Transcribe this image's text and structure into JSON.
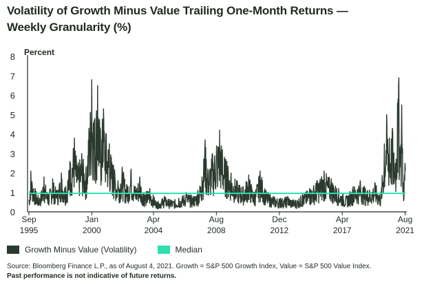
{
  "title_line1": "Volatility of Growth Minus Value Trailing One-Month Returns —",
  "title_line2": "Weekly Granularity (%)",
  "source": "Source: Bloomberg Finance L.P., as of August 4, 2021. Growth = S&P 500 Growth Index, Value = S&P 500 Value Index.",
  "disclaimer": "Past performance is not indicative of future returns.",
  "colors": {
    "series": "#2b3a2e",
    "median": "#2de0b0",
    "text": "#1f2a1f",
    "axis": "#1f2a1f"
  },
  "chart_data": {
    "type": "line",
    "title": "Volatility of Growth Minus Value Trailing One-Month Returns — Weekly Granularity (%)",
    "ylabel": "Percent",
    "ylim": [
      0,
      8
    ],
    "yticks": [
      0,
      1,
      2,
      3,
      4,
      5,
      6,
      7,
      8
    ],
    "xlim": [
      1995.67,
      2021.6
    ],
    "xticks": [
      {
        "x": 1995.67,
        "line1": "Sep",
        "line2": "1995"
      },
      {
        "x": 2000.0,
        "line1": "Jan",
        "line2": "2000"
      },
      {
        "x": 2004.25,
        "line1": "Apr",
        "line2": "2004"
      },
      {
        "x": 2008.58,
        "line1": "Aug",
        "line2": "2008"
      },
      {
        "x": 2012.92,
        "line1": "Dec",
        "line2": "2012"
      },
      {
        "x": 2017.25,
        "line1": "Apr",
        "line2": "2017"
      },
      {
        "x": 2021.58,
        "line1": "Aug",
        "line2": "2021"
      }
    ],
    "legend": [
      "Growth Minus Value (Volatility)",
      "Median"
    ],
    "legend_position": "bottom-left",
    "grid": false,
    "median": 0.95,
    "series": [
      {
        "name": "Growth Minus Value (Volatility)",
        "anchors": [
          [
            1995.67,
            0.6
          ],
          [
            1995.8,
            2.1
          ],
          [
            1996.1,
            1.2
          ],
          [
            1996.4,
            0.7
          ],
          [
            1996.7,
            1.8
          ],
          [
            1997.0,
            0.9
          ],
          [
            1997.3,
            1.7
          ],
          [
            1997.6,
            1.1
          ],
          [
            1997.9,
            2.0
          ],
          [
            1998.2,
            1.3
          ],
          [
            1998.5,
            2.6
          ],
          [
            1998.8,
            3.8
          ],
          [
            1999.0,
            2.4
          ],
          [
            1999.3,
            3.0
          ],
          [
            1999.6,
            2.3
          ],
          [
            1999.8,
            4.3
          ],
          [
            2000.0,
            6.8
          ],
          [
            2000.2,
            4.8
          ],
          [
            2000.4,
            6.5
          ],
          [
            2000.6,
            4.2
          ],
          [
            2000.8,
            5.3
          ],
          [
            2001.0,
            4.0
          ],
          [
            2001.2,
            3.5
          ],
          [
            2001.5,
            2.4
          ],
          [
            2001.8,
            1.6
          ],
          [
            2002.1,
            2.3
          ],
          [
            2002.4,
            1.4
          ],
          [
            2002.7,
            2.2
          ],
          [
            2003.0,
            1.3
          ],
          [
            2003.3,
            1.8
          ],
          [
            2003.6,
            1.0
          ],
          [
            2004.0,
            1.2
          ],
          [
            2004.5,
            0.5
          ],
          [
            2005.0,
            0.8
          ],
          [
            2005.5,
            0.6
          ],
          [
            2006.0,
            0.7
          ],
          [
            2006.5,
            1.0
          ],
          [
            2007.0,
            0.8
          ],
          [
            2007.3,
            1.1
          ],
          [
            2007.6,
            1.8
          ],
          [
            2007.8,
            3.7
          ],
          [
            2008.0,
            2.2
          ],
          [
            2008.3,
            3.0
          ],
          [
            2008.6,
            3.4
          ],
          [
            2008.8,
            4.2
          ],
          [
            2009.0,
            3.2
          ],
          [
            2009.3,
            2.6
          ],
          [
            2009.6,
            2.0
          ],
          [
            2010.0,
            1.6
          ],
          [
            2010.4,
            1.3
          ],
          [
            2010.8,
            1.9
          ],
          [
            2011.2,
            1.0
          ],
          [
            2011.6,
            2.1
          ],
          [
            2012.0,
            1.1
          ],
          [
            2012.5,
            0.8
          ],
          [
            2013.0,
            0.7
          ],
          [
            2013.5,
            0.8
          ],
          [
            2014.0,
            0.6
          ],
          [
            2014.5,
            0.9
          ],
          [
            2015.0,
            1.2
          ],
          [
            2015.5,
            1.6
          ],
          [
            2016.0,
            2.1
          ],
          [
            2016.5,
            1.7
          ],
          [
            2017.0,
            1.2
          ],
          [
            2017.5,
            0.8
          ],
          [
            2018.0,
            1.3
          ],
          [
            2018.5,
            1.6
          ],
          [
            2019.0,
            1.1
          ],
          [
            2019.5,
            1.5
          ],
          [
            2019.9,
            0.9
          ],
          [
            2020.15,
            3.5
          ],
          [
            2020.3,
            5.0
          ],
          [
            2020.5,
            3.8
          ],
          [
            2020.7,
            4.3
          ],
          [
            2020.9,
            2.5
          ],
          [
            2021.05,
            5.6
          ],
          [
            2021.15,
            6.9
          ],
          [
            2021.25,
            3.2
          ],
          [
            2021.35,
            5.5
          ],
          [
            2021.45,
            1.5
          ],
          [
            2021.58,
            2.5
          ]
        ]
      },
      {
        "name": "Median",
        "values": [
          0.95
        ]
      }
    ]
  }
}
